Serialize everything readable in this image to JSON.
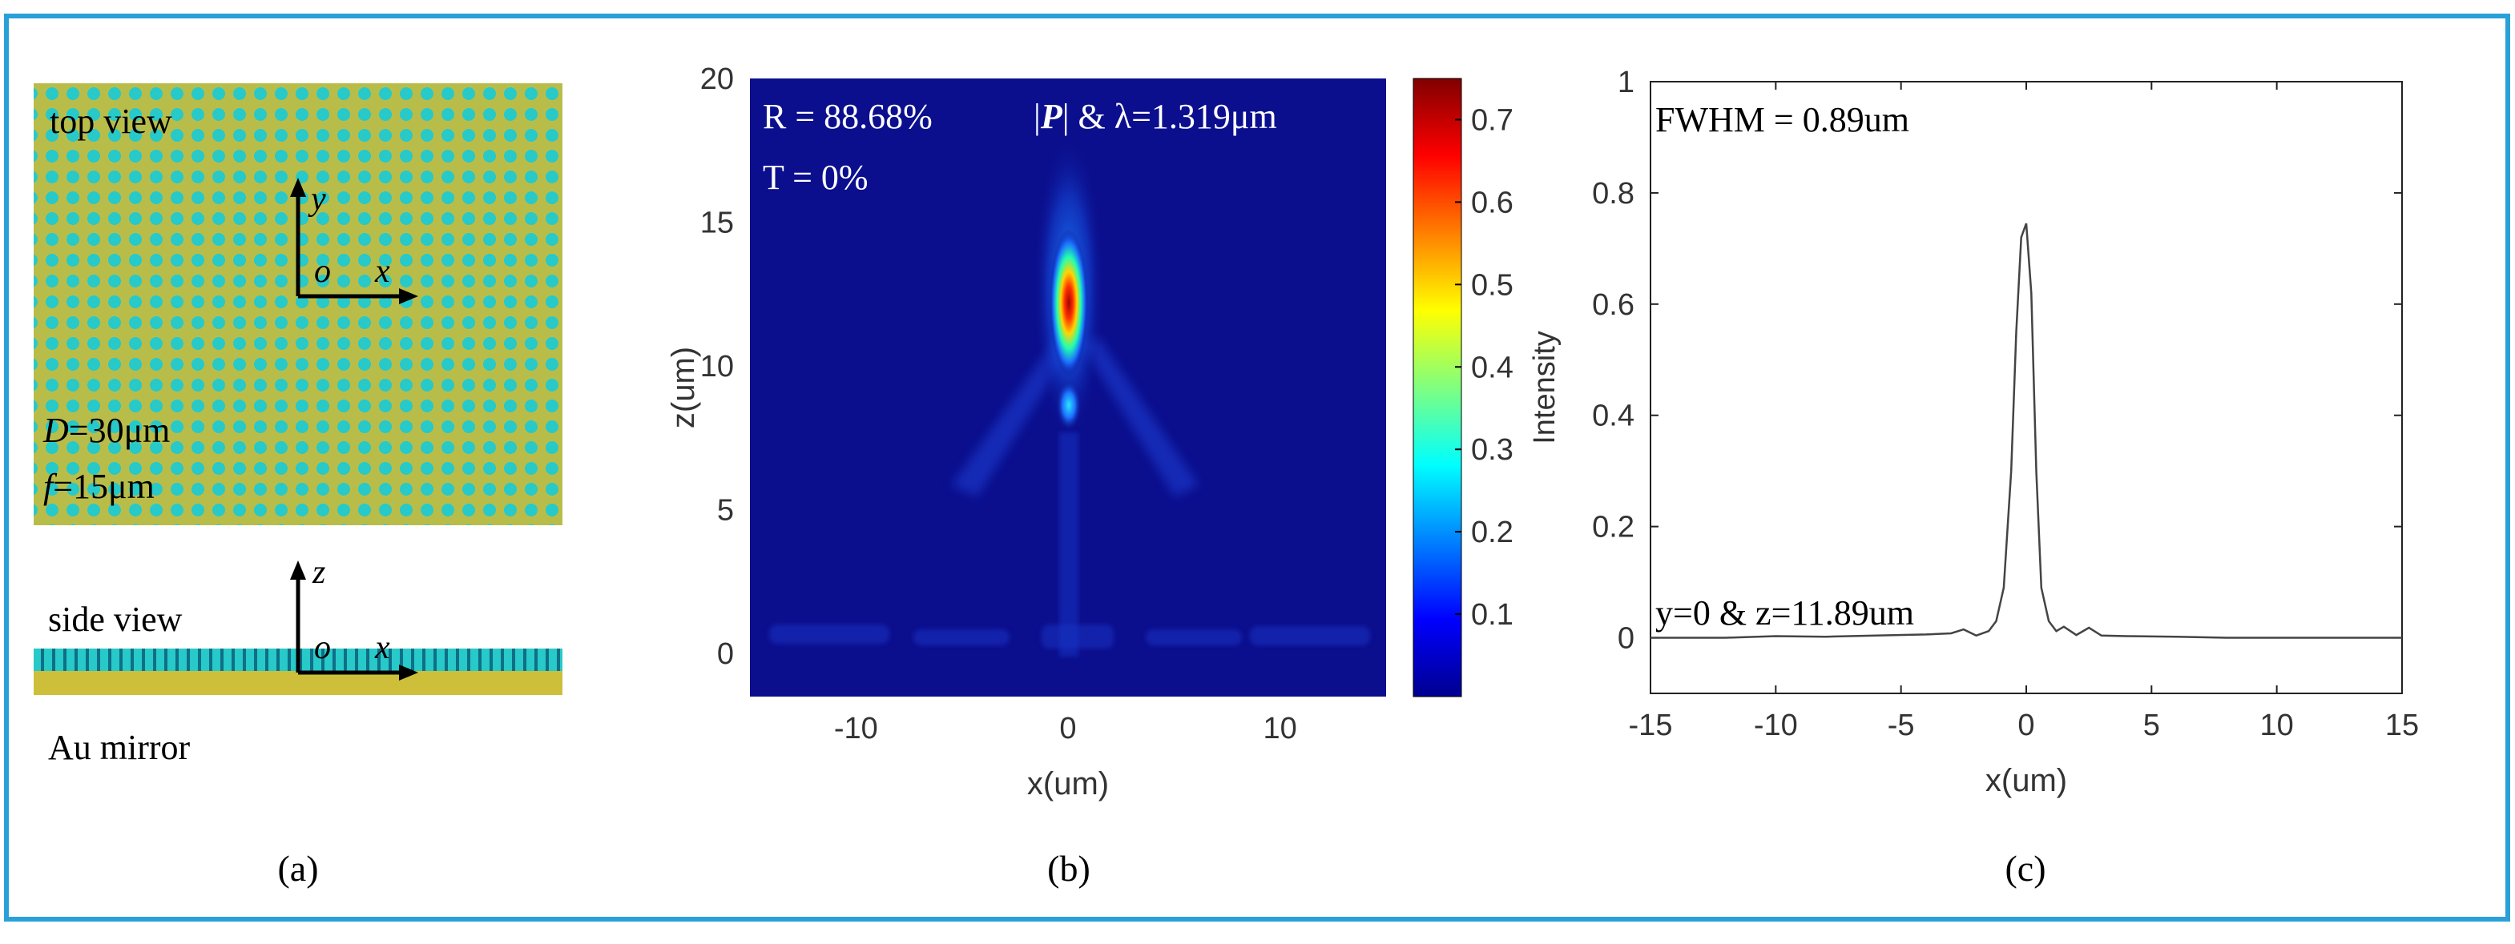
{
  "colors": {
    "frame": "#2aa0d8",
    "metasurface": "#b8bd4a",
    "holes": "#27c9c9",
    "gold": "#cdbf3a",
    "colormap_base": "#0b0f8e"
  },
  "panel_a": {
    "top_view_label": "top view",
    "axis_y": "y",
    "axis_x": "x",
    "origin": "o",
    "diameter_label": "D=30μm",
    "diameter_var": "D",
    "diameter_value": "=30μm",
    "focal_var": "f",
    "focal_value": "=15μm",
    "side_view_label": "side view",
    "axis_z": "z",
    "mirror_label": "Au mirror",
    "caption": "(a)"
  },
  "panel_b": {
    "annotation_R": "R = 88.68%",
    "annotation_P": "|P| & λ=1.319μm",
    "annotation_P_pre": "|",
    "annotation_P_bold": "P",
    "annotation_P_post": "| & λ=1.319μm",
    "annotation_T": "T = 0%",
    "caption": "(b)",
    "colorbar_label": "Intensity",
    "colorbar_ticks": [
      "0.7",
      "0.6",
      "0.5",
      "0.4",
      "0.3",
      "0.2",
      "0.1"
    ],
    "colorbar_tick_values": [
      0.7,
      0.6,
      0.5,
      0.4,
      0.3,
      0.2,
      0.1
    ],
    "colorbar_range": [
      0,
      0.75
    ]
  },
  "panel_c": {
    "annotation_fwhm": "FWHM = 0.89um",
    "annotation_line": "y=0 & z=11.89um",
    "caption": "(c)"
  },
  "chart_data": [
    {
      "type": "heatmap",
      "title": "",
      "xlabel": "x(um)",
      "ylabel": "z(um)",
      "xlim": [
        -15,
        15
      ],
      "ylim": [
        -1.5,
        20
      ],
      "xticks": [
        -10,
        0,
        10
      ],
      "xtick_labels": [
        "-10",
        "0",
        "10"
      ],
      "yticks": [
        0,
        5,
        10,
        15,
        20
      ],
      "ytick_labels": [
        "0",
        "5",
        "10",
        "15",
        "20"
      ],
      "colorbar_label": "Intensity",
      "colorbar_range": [
        0,
        0.75
      ],
      "features": [
        {
          "name": "focal spot",
          "x": 0,
          "z": 11.9,
          "value": 0.74
        },
        {
          "name": "secondary spot",
          "x": 0,
          "z": 8.5,
          "value": 0.3
        }
      ]
    },
    {
      "type": "line",
      "title": "",
      "xlabel": "x(um)",
      "ylabel": "",
      "xlim": [
        -15,
        15
      ],
      "ylim": [
        -0.1,
        1
      ],
      "xticks": [
        -15,
        -10,
        -5,
        0,
        5,
        10,
        15
      ],
      "xtick_labels": [
        "-15",
        "-10",
        "-5",
        "0",
        "5",
        "10",
        "15"
      ],
      "yticks": [
        0,
        0.2,
        0.4,
        0.6,
        0.8,
        1
      ],
      "ytick_labels": [
        "0",
        "0.2",
        "0.4",
        "0.6",
        "0.8",
        "1"
      ],
      "series": [
        {
          "name": "Intensity",
          "x": [
            -15,
            -12,
            -10,
            -8,
            -6,
            -4,
            -3,
            -2.5,
            -2,
            -1.5,
            -1.2,
            -0.9,
            -0.6,
            -0.4,
            -0.2,
            0,
            0.2,
            0.4,
            0.6,
            0.9,
            1.2,
            1.5,
            2,
            2.5,
            3,
            4,
            6,
            8,
            10,
            12,
            15
          ],
          "y": [
            0.0,
            0.0,
            0.003,
            0.002,
            0.004,
            0.006,
            0.008,
            0.015,
            0.004,
            0.012,
            0.03,
            0.09,
            0.3,
            0.55,
            0.72,
            0.745,
            0.62,
            0.3,
            0.09,
            0.03,
            0.012,
            0.02,
            0.005,
            0.018,
            0.004,
            0.003,
            0.002,
            0.0,
            0.0,
            0.0,
            0.0
          ]
        }
      ]
    }
  ]
}
